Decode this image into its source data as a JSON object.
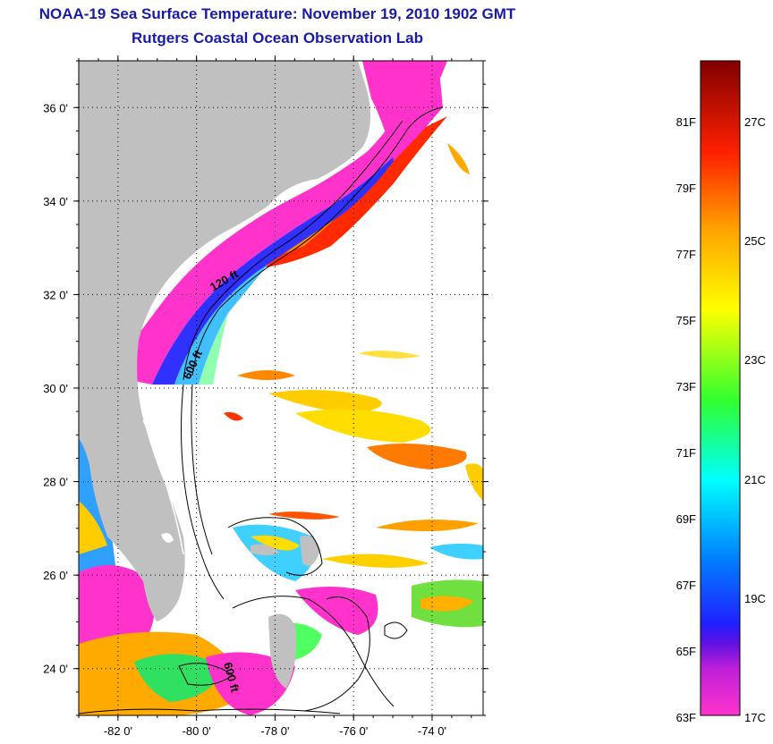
{
  "title_line1": "NOAA-19 Sea Surface Temperature:  November 19, 2010 1902 GMT",
  "title_line2": "Rutgers Coastal Ocean Observation Lab",
  "map": {
    "lon_range": [
      -83.0,
      -72.7
    ],
    "lat_range": [
      23.0,
      37.0
    ],
    "lon_ticks": [
      {
        "value": -82,
        "label": "-82 0'"
      },
      {
        "value": -80,
        "label": "-80 0'"
      },
      {
        "value": -78,
        "label": "-78 0'"
      },
      {
        "value": -76,
        "label": "-76 0'"
      },
      {
        "value": -74,
        "label": "-74 0'"
      }
    ],
    "lat_ticks": [
      {
        "value": 36,
        "label": "36 0'"
      },
      {
        "value": 34,
        "label": "34 0'"
      },
      {
        "value": 32,
        "label": "32 0'"
      },
      {
        "value": 30,
        "label": "30 0'"
      },
      {
        "value": 28,
        "label": "28 0'"
      },
      {
        "value": 26,
        "label": "26 0'"
      },
      {
        "value": 24,
        "label": "24 0'"
      }
    ],
    "isobath_labels": [
      "120 ft",
      "600 ft",
      "600 ft"
    ],
    "land_color": "#c0c0c0"
  },
  "colorbar": {
    "fahrenheit_labels": [
      "81F",
      "79F",
      "77F",
      "75F",
      "73F",
      "71F",
      "69F",
      "67F",
      "65F",
      "63F"
    ],
    "celsius_labels": [
      "27C",
      "25C",
      "23C",
      "21C",
      "19C",
      "17C"
    ],
    "colors": [
      "#ff33cc",
      "#b000d0",
      "#2020ff",
      "#0080ff",
      "#00ffff",
      "#30ff30",
      "#ffff00",
      "#ffa500",
      "#ff2000",
      "#800000"
    ]
  }
}
